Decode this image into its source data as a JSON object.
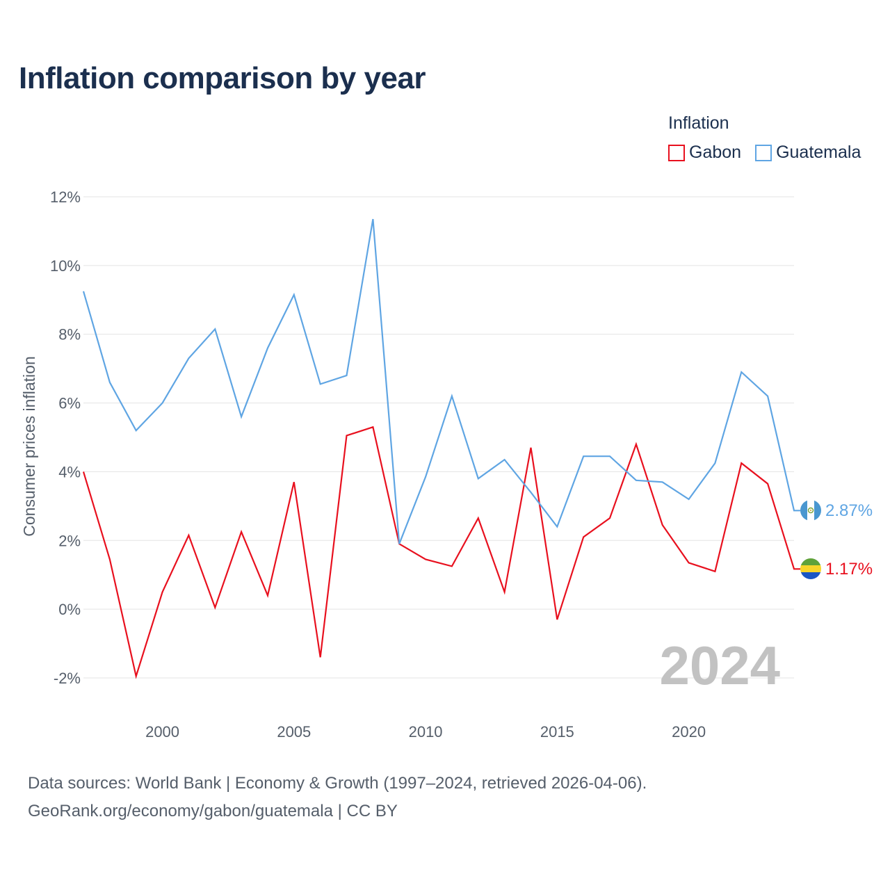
{
  "title": "Inflation comparison by year",
  "legend": {
    "title": "Inflation",
    "items": [
      {
        "name": "Gabon",
        "color": "#e8101e"
      },
      {
        "name": "Guatemala",
        "color": "#5fa5e3"
      }
    ]
  },
  "footer": {
    "line1": "Data sources: World Bank | Economy & Growth (1997–2024, retrieved 2026-04-06).",
    "line2": "GeoRank.org/economy/gabon/guatemala | CC BY"
  },
  "chart_data": {
    "type": "line",
    "title": "Inflation comparison by year",
    "xlabel": "",
    "ylabel": "Consumer prices inflation",
    "x": [
      1997,
      1998,
      1999,
      2000,
      2001,
      2002,
      2003,
      2004,
      2005,
      2006,
      2007,
      2008,
      2009,
      2010,
      2011,
      2012,
      2013,
      2014,
      2015,
      2016,
      2017,
      2018,
      2019,
      2020,
      2021,
      2022,
      2023,
      2024
    ],
    "xlim": [
      1997,
      2024
    ],
    "ylim": [
      -2.5,
      12
    ],
    "x_ticks": [
      2000,
      2005,
      2010,
      2015,
      2020
    ],
    "y_ticks": [
      -2,
      0,
      2,
      4,
      6,
      8,
      10,
      12
    ],
    "y_tick_labels": [
      "-2%",
      "0%",
      "2%",
      "4%",
      "6%",
      "8%",
      "10%",
      "12%"
    ],
    "grid": true,
    "legend_position": "top-right",
    "watermark": "2024",
    "series": [
      {
        "name": "Gabon",
        "color": "#e8101e",
        "values": [
          4.0,
          1.45,
          -1.95,
          0.5,
          2.15,
          0.05,
          2.25,
          0.4,
          3.7,
          -1.4,
          5.05,
          5.3,
          1.9,
          1.45,
          1.25,
          2.65,
          0.5,
          4.7,
          -0.3,
          2.1,
          2.65,
          4.8,
          2.45,
          1.35,
          1.1,
          4.25,
          3.65,
          1.17
        ],
        "end_label": "1.17%",
        "flag": "gabon-flag-icon"
      },
      {
        "name": "Guatemala",
        "color": "#5fa5e3",
        "values": [
          9.25,
          6.6,
          5.2,
          6.0,
          7.3,
          8.15,
          5.6,
          7.6,
          9.15,
          6.55,
          6.8,
          11.35,
          1.9,
          3.85,
          6.2,
          3.8,
          4.35,
          3.4,
          2.4,
          4.45,
          4.45,
          3.75,
          3.7,
          3.2,
          4.25,
          6.9,
          6.2,
          2.87
        ],
        "end_label": "2.87%",
        "flag": "guatemala-flag-icon"
      }
    ]
  }
}
